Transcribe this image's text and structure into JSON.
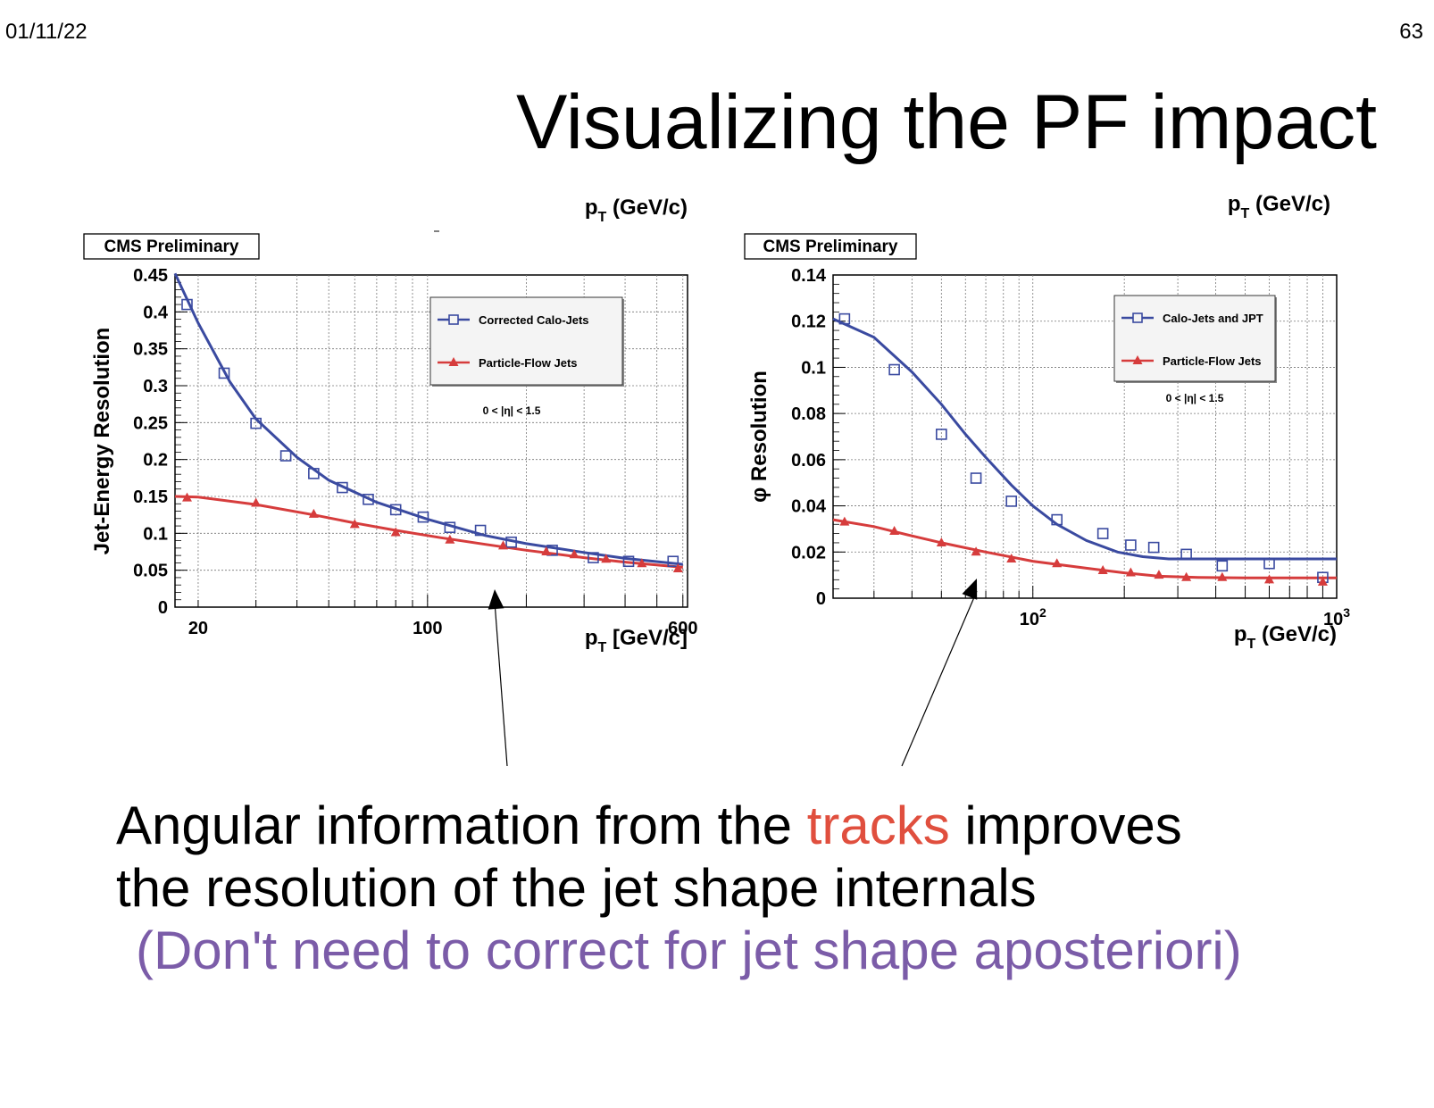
{
  "slide": {
    "date": "01/11/22",
    "page_number": "63",
    "title": "Visualizing the PF impact",
    "line1_before": "Angular information from the ",
    "line1_highlight": "tracks",
    "line1_after": " improves",
    "line2": "the resolution of the jet shape internals",
    "line3": "(Don't need to correct for jet shape aposteriori)",
    "highlight_color": "#e04f3e",
    "note_color": "#7b5ca8"
  },
  "chart_data": [
    {
      "type": "scatter",
      "badge": "CMS Preliminary",
      "header_label": "p_T (GeV/c)",
      "xlabel": "p_T [GeV/c]",
      "ylabel": "Jet-Energy Resolution",
      "x_log": true,
      "xlim": [
        17,
        620
      ],
      "ylim": [
        0,
        0.45
      ],
      "yticks": [
        0,
        0.05,
        0.1,
        0.15,
        0.2,
        0.25,
        0.3,
        0.35,
        0.4,
        0.45
      ],
      "ytick_labels": [
        "0",
        "0.05",
        "0.1",
        "0.15",
        "0.2",
        "0.25",
        "0.3",
        "0.35",
        "0.4",
        "0.45"
      ],
      "xtick_labels": [
        {
          "x": 20,
          "label": "20"
        },
        {
          "x": 100,
          "label": "100"
        },
        {
          "x": 600,
          "label": "600"
        }
      ],
      "annotation": "0 < |η| < 1.5",
      "series": [
        {
          "name": "Corrected Calo-Jets",
          "color": "#3a4aa0",
          "marker": "open-square",
          "x": [
            18.5,
            24,
            30,
            37,
            45,
            55,
            66,
            80,
            97,
            117,
            145,
            180,
            240,
            320,
            410,
            560
          ],
          "y": [
            0.41,
            0.317,
            0.249,
            0.205,
            0.181,
            0.162,
            0.146,
            0.132,
            0.122,
            0.108,
            0.104,
            0.088,
            0.077,
            0.067,
            0.062,
            0.062
          ],
          "fit_x": [
            17,
            20,
            25,
            30,
            40,
            50,
            70,
            100,
            150,
            200,
            300,
            400,
            600
          ],
          "fit_y": [
            0.452,
            0.385,
            0.305,
            0.255,
            0.203,
            0.172,
            0.142,
            0.119,
            0.097,
            0.086,
            0.074,
            0.066,
            0.058
          ]
        },
        {
          "name": "Particle-Flow Jets",
          "color": "#d63c3c",
          "marker": "filled-triangle",
          "x": [
            18.5,
            30,
            45,
            60,
            80,
            117,
            170,
            230,
            280,
            350,
            450,
            580
          ],
          "y": [
            0.148,
            0.141,
            0.126,
            0.112,
            0.101,
            0.091,
            0.083,
            0.075,
            0.071,
            0.065,
            0.059,
            0.052
          ],
          "fit_x": [
            17,
            20,
            30,
            45,
            60,
            80,
            110,
            150,
            200,
            300,
            400,
            600
          ],
          "fit_y": [
            0.15,
            0.149,
            0.139,
            0.125,
            0.114,
            0.104,
            0.094,
            0.085,
            0.077,
            0.067,
            0.061,
            0.054
          ]
        }
      ]
    },
    {
      "type": "scatter",
      "badge": "CMS Preliminary",
      "header_label": "p_T (GeV/c)",
      "xlabel": "p_T (GeV/c)",
      "ylabel": "φ Resolution",
      "x_log": true,
      "xlim": [
        22,
        1000
      ],
      "ylim": [
        0,
        0.14
      ],
      "yticks": [
        0,
        0.02,
        0.04,
        0.06,
        0.08,
        0.1,
        0.12,
        0.14
      ],
      "ytick_labels": [
        "0",
        "0.02",
        "0.04",
        "0.06",
        "0.08",
        "0.1",
        "0.12",
        "0.14"
      ],
      "xtick_labels": [
        {
          "x": 100,
          "label": "10",
          "sup": "2"
        },
        {
          "x": 1000,
          "label": "10",
          "sup": "3"
        }
      ],
      "annotation": "0 < |η| < 1.5",
      "series": [
        {
          "name": "Calo-Jets and JPT",
          "color": "#3a4aa0",
          "marker": "open-square",
          "x": [
            24,
            35,
            50,
            65,
            85,
            120,
            170,
            210,
            250,
            320,
            420,
            600,
            900
          ],
          "y": [
            0.121,
            0.099,
            0.071,
            0.052,
            0.042,
            0.034,
            0.028,
            0.023,
            0.022,
            0.019,
            0.014,
            0.015,
            0.009
          ],
          "fit_x": [
            22,
            30,
            40,
            50,
            60,
            70,
            85,
            100,
            120,
            150,
            190,
            230,
            280,
            400,
            600,
            1000
          ],
          "fit_y": [
            0.121,
            0.113,
            0.098,
            0.084,
            0.071,
            0.061,
            0.049,
            0.04,
            0.032,
            0.025,
            0.02,
            0.018,
            0.017,
            0.017,
            0.017,
            0.017
          ]
        },
        {
          "name": "Particle-Flow Jets",
          "color": "#d63c3c",
          "marker": "filled-triangle",
          "x": [
            24,
            35,
            50,
            65,
            85,
            120,
            170,
            210,
            260,
            320,
            420,
            600,
            900
          ],
          "y": [
            0.033,
            0.029,
            0.024,
            0.02,
            0.017,
            0.015,
            0.012,
            0.011,
            0.01,
            0.009,
            0.009,
            0.008,
            0.007
          ],
          "fit_x": [
            22,
            30,
            40,
            50,
            70,
            100,
            150,
            200,
            260,
            350,
            500,
            1000
          ],
          "fit_y": [
            0.034,
            0.031,
            0.027,
            0.024,
            0.02,
            0.016,
            0.013,
            0.011,
            0.0095,
            0.009,
            0.0088,
            0.0088
          ]
        }
      ]
    }
  ]
}
